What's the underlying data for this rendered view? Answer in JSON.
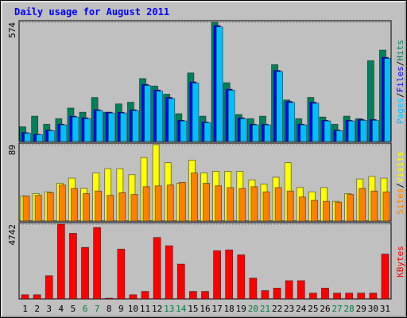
{
  "chart_data": [
    {
      "type": "bar",
      "title": "Daily usage for August 2011",
      "series": [
        {
          "name": "Hits",
          "color": "#00805c",
          "values": [
            71,
            122,
            83,
            110,
            161,
            141,
            212,
            141,
            181,
            189,
            303,
            267,
            228,
            134,
            330,
            122,
            574,
            283,
            130,
            110,
            122,
            370,
            200,
            110,
            212,
            118,
            83,
            122,
            110,
            389,
            440
          ]
        },
        {
          "name": "Files",
          "color": "#0000ff",
          "values": [
            43,
            35,
            55,
            83,
            122,
            114,
            153,
            141,
            141,
            153,
            275,
            248,
            212,
            102,
            287,
            94,
            558,
            252,
            114,
            83,
            83,
            342,
            193,
            83,
            189,
            102,
            55,
            102,
            106,
            106,
            405
          ]
        },
        {
          "name": "Pages",
          "color": "#00c0ff",
          "values": [
            40,
            33,
            52,
            80,
            118,
            110,
            149,
            137,
            137,
            149,
            270,
            243,
            207,
            99,
            282,
            91,
            552,
            247,
            110,
            80,
            80,
            337,
            188,
            80,
            184,
            99,
            52,
            99,
            102,
            102,
            400
          ]
        }
      ],
      "legend_separator": "/",
      "ylim": [
        0,
        574
      ],
      "yticks": [
        574
      ],
      "grid": true
    },
    {
      "type": "bar",
      "series": [
        {
          "name": "Visits",
          "color": "#ffff00",
          "values": [
            29,
            32,
            34,
            44,
            50,
            38,
            56,
            61,
            61,
            54,
            74,
            89,
            68,
            44,
            71,
            56,
            58,
            58,
            58,
            48,
            43,
            51,
            68,
            39,
            34,
            39,
            23,
            32,
            49,
            52,
            50
          ]
        },
        {
          "name": "Sites",
          "color": "#ff8000",
          "values": [
            29,
            30,
            33,
            42,
            38,
            32,
            35,
            30,
            33,
            31,
            40,
            41,
            42,
            45,
            56,
            44,
            41,
            39,
            38,
            40,
            34,
            39,
            35,
            28,
            24,
            23,
            22,
            31,
            38,
            35,
            34
          ]
        }
      ],
      "legend_separator": "/",
      "ylim": [
        0,
        89
      ],
      "yticks": [
        89
      ],
      "grid": true
    },
    {
      "type": "bar",
      "categories": [
        "1",
        "2",
        "3",
        "4",
        "5",
        "6",
        "7",
        "8",
        "9",
        "10",
        "11",
        "12",
        "13",
        "14",
        "15",
        "16",
        "17",
        "18",
        "19",
        "20",
        "21",
        "22",
        "23",
        "24",
        "25",
        "26",
        "27",
        "28",
        "29",
        "30",
        "31"
      ],
      "category_colors": [
        "#000000",
        "#000000",
        "#000000",
        "#000000",
        "#000000",
        "#008040",
        "#008040",
        "#000000",
        "#000000",
        "#000000",
        "#000000",
        "#000000",
        "#008040",
        "#008040",
        "#000000",
        "#000000",
        "#000000",
        "#000000",
        "#000000",
        "#008040",
        "#008040",
        "#000000",
        "#000000",
        "#000000",
        "#000000",
        "#000000",
        "#008040",
        "#008040",
        "#000000",
        "#000000",
        "#000000"
      ],
      "series": [
        {
          "name": "KBytes",
          "color": "#ff0000",
          "values": [
            264,
            264,
            1475,
            4742,
            4163,
            3267,
            4531,
            50,
            3162,
            264,
            474,
            3899,
            3373,
            2213,
            474,
            474,
            3056,
            3109,
            2793,
            1317,
            527,
            685,
            1159,
            1159,
            369,
            685,
            369,
            369,
            369,
            369,
            2846
          ]
        }
      ],
      "ylim": [
        0,
        4742
      ],
      "yticks": [
        4742
      ],
      "grid": true
    }
  ]
}
